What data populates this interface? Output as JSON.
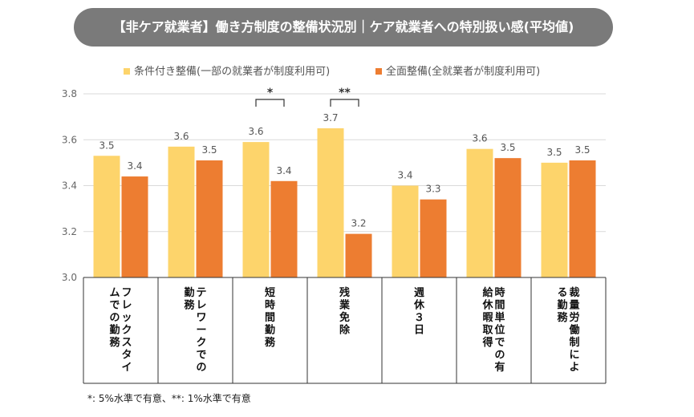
{
  "chart_data": {
    "type": "bar",
    "title": "【非ケア就業者】働き方制度の整備状況別｜ケア就業者への特別扱い感(平均値)",
    "categories": [
      [
        "フレックスタイ",
        "ムでの勤務"
      ],
      [
        "テレワークでの",
        "勤務"
      ],
      [
        "短時間勤務"
      ],
      [
        "残業免除"
      ],
      [
        "週休３日"
      ],
      [
        "時間単位での有",
        "給休暇取得"
      ],
      [
        "裁量労働制によ",
        "る勤務"
      ]
    ],
    "series": [
      {
        "name": "条件付き整備(一部の就業者が制度利用可)",
        "color": "#fdd46b",
        "values": [
          3.53,
          3.57,
          3.59,
          3.65,
          3.4,
          3.56,
          3.5
        ],
        "labels": [
          "3.5",
          "3.6",
          "3.6",
          "3.7",
          "3.4",
          "3.6",
          "3.5"
        ]
      },
      {
        "name": "全面整備(全就業者が制度利用可)",
        "color": "#ed7d31",
        "values": [
          3.44,
          3.51,
          3.42,
          3.19,
          3.34,
          3.52,
          3.51
        ],
        "labels": [
          "3.4",
          "3.5",
          "3.4",
          "3.2",
          "3.3",
          "3.5",
          "3.5"
        ]
      }
    ],
    "ylim": [
      3.0,
      3.8
    ],
    "yticks": [
      "3.0",
      "3.2",
      "3.4",
      "3.6",
      "3.8"
    ],
    "ytick_values": [
      3.0,
      3.2,
      3.4,
      3.6,
      3.8
    ],
    "grid": true,
    "legend": "top",
    "significance": [
      {
        "category": 2,
        "mark": "*"
      },
      {
        "category": 3,
        "mark": "**"
      }
    ]
  },
  "footnote": "*: 5%水準で有意、**: 1%水準で有意"
}
